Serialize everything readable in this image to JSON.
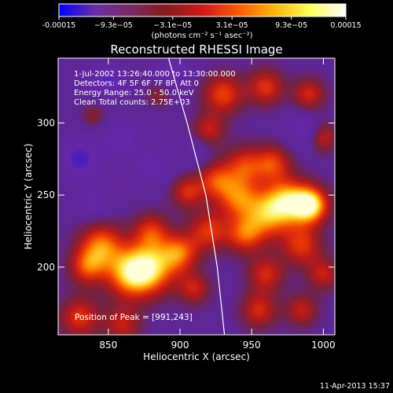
{
  "colorbar": {
    "ticks": [
      "-0.00015",
      "−9.3e−05",
      "−3.1e−05",
      "3.1e−05",
      "9.3e−05",
      "0.00015"
    ],
    "tick_values": [
      -0.00015,
      -9.3e-05,
      -3.1e-05,
      3.1e-05,
      9.3e-05,
      0.00015
    ],
    "unit_label": "(photons cm⁻² s⁻¹ asec⁻²)",
    "colors": [
      "#0000ff",
      "#6a2ea8",
      "#7a2a62",
      "#8b1a1a",
      "#d01818",
      "#ff5a00",
      "#ffb400",
      "#ffff55",
      "#ffffff"
    ]
  },
  "plot": {
    "title": "Reconstructed RHESSI Image",
    "info_lines": [
      "1-Jul-2002 13:26:40.000 to 13:30:00.000",
      "Detectors: 4F 5F 6F 7F 8F, Att 0",
      "Energy Range: 25.0 - 50.0 keV",
      "Clean    Total counts: 2.75E+03"
    ],
    "peak_label": "Position of Peak = [991,243]"
  },
  "footer": {
    "timestamp": "11-Apr-2013 15:37"
  },
  "chart_data": {
    "type": "heatmap",
    "title": "Reconstructed RHESSI Image",
    "xlabel": "Heliocentric X (arcsec)",
    "ylabel": "Heliocentric Y (arcsec)",
    "xlim": [
      815,
      1008
    ],
    "ylim": [
      153,
      345
    ],
    "xticks": [
      850,
      900,
      950,
      1000
    ],
    "yticks": [
      200,
      250,
      300
    ],
    "color_range": [
      -0.00015,
      0.00015
    ],
    "colorbar_label": "(photons cm⁻² s⁻¹ asec⁻²)",
    "peak": {
      "x": 991,
      "y": 243
    },
    "limb_curve": {
      "x": [
        892,
        905,
        918,
        926,
        931
      ],
      "y": [
        345,
        300,
        250,
        200,
        153
      ]
    },
    "sources": [
      {
        "x": 991,
        "y": 243,
        "r": 9,
        "v": 1.0
      },
      {
        "x": 975,
        "y": 246,
        "r": 11,
        "v": 0.75
      },
      {
        "x": 960,
        "y": 236,
        "r": 12,
        "v": 0.7
      },
      {
        "x": 940,
        "y": 248,
        "r": 10,
        "v": 0.6
      },
      {
        "x": 925,
        "y": 260,
        "r": 9,
        "v": 0.55
      },
      {
        "x": 945,
        "y": 270,
        "r": 10,
        "v": 0.55
      },
      {
        "x": 965,
        "y": 272,
        "r": 9,
        "v": 0.55
      },
      {
        "x": 905,
        "y": 252,
        "r": 8,
        "v": 0.5
      },
      {
        "x": 920,
        "y": 225,
        "r": 10,
        "v": 0.55
      },
      {
        "x": 945,
        "y": 222,
        "r": 9,
        "v": 0.55
      },
      {
        "x": 985,
        "y": 215,
        "r": 10,
        "v": 0.55
      },
      {
        "x": 900,
        "y": 210,
        "r": 9,
        "v": 0.6
      },
      {
        "x": 880,
        "y": 200,
        "r": 13,
        "v": 0.8
      },
      {
        "x": 865,
        "y": 195,
        "r": 12,
        "v": 0.75
      },
      {
        "x": 845,
        "y": 215,
        "r": 11,
        "v": 0.7
      },
      {
        "x": 835,
        "y": 200,
        "r": 9,
        "v": 0.55
      },
      {
        "x": 880,
        "y": 225,
        "r": 9,
        "v": 0.5
      },
      {
        "x": 910,
        "y": 185,
        "r": 8,
        "v": 0.45
      },
      {
        "x": 960,
        "y": 195,
        "r": 9,
        "v": 0.5
      },
      {
        "x": 1000,
        "y": 195,
        "r": 8,
        "v": 0.45
      },
      {
        "x": 830,
        "y": 165,
        "r": 10,
        "v": 0.55
      },
      {
        "x": 860,
        "y": 160,
        "r": 9,
        "v": 0.45
      },
      {
        "x": 955,
        "y": 170,
        "r": 9,
        "v": 0.5
      },
      {
        "x": 985,
        "y": 170,
        "r": 8,
        "v": 0.45
      },
      {
        "x": 930,
        "y": 320,
        "r": 10,
        "v": 0.6
      },
      {
        "x": 960,
        "y": 325,
        "r": 9,
        "v": 0.55
      },
      {
        "x": 990,
        "y": 320,
        "r": 8,
        "v": 0.5
      },
      {
        "x": 920,
        "y": 295,
        "r": 8,
        "v": 0.45
      },
      {
        "x": 840,
        "y": 305,
        "r": 6,
        "v": 0.3
      },
      {
        "x": 885,
        "y": 320,
        "r": 6,
        "v": 0.3
      },
      {
        "x": 1000,
        "y": 290,
        "r": 7,
        "v": 0.45
      },
      {
        "x": 830,
        "y": 275,
        "r": 11,
        "v": -0.55
      },
      {
        "x": 860,
        "y": 290,
        "r": 10,
        "v": -0.45
      },
      {
        "x": 880,
        "y": 270,
        "r": 9,
        "v": -0.4
      },
      {
        "x": 850,
        "y": 330,
        "r": 9,
        "v": -0.5
      },
      {
        "x": 895,
        "y": 335,
        "r": 8,
        "v": -0.45
      },
      {
        "x": 840,
        "y": 245,
        "r": 8,
        "v": -0.35
      },
      {
        "x": 985,
        "y": 295,
        "r": 8,
        "v": -0.4
      },
      {
        "x": 910,
        "y": 280,
        "r": 7,
        "v": -0.3
      }
    ]
  }
}
